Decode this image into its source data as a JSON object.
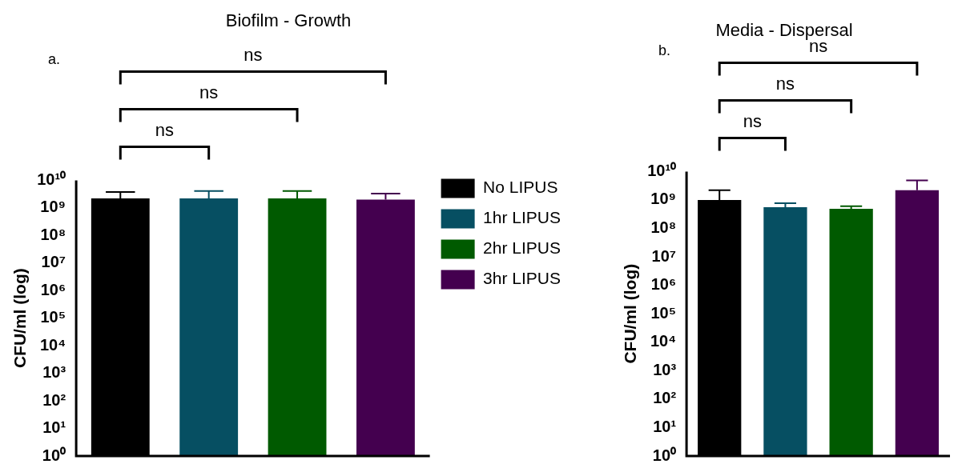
{
  "chart_data": [
    {
      "type": "bar",
      "title": "Biofilm - Growth",
      "ylabel": "CFU/ml (log)",
      "categories": [
        null,
        null,
        null,
        null
      ],
      "log": true,
      "legend": "right",
      "tick_labels": "y",
      "ylim": [
        1,
        10000000000
      ],
      "yticks": [
        {
          "value": 1,
          "label": "10⁰"
        },
        {
          "value": 10,
          "label": "10¹"
        },
        {
          "value": 100,
          "label": "10²"
        },
        {
          "value": 1000,
          "label": "10³"
        },
        {
          "value": 10000,
          "label": "10⁴"
        },
        {
          "value": 100000,
          "label": "10⁵"
        },
        {
          "value": 1000000,
          "label": "10⁶"
        },
        {
          "value": 10000000,
          "label": "10⁷"
        },
        {
          "value": 100000000,
          "label": "10⁸"
        },
        {
          "value": 1000000000,
          "label": "10⁹"
        },
        {
          "value": 10000000000,
          "label": "10¹⁰"
        }
      ],
      "series": [
        {
          "name": "No LIPUS",
          "color": "#000000",
          "values": [
            2200000000,
            null,
            null,
            null
          ],
          "errors": [
            [
              2200000000,
              3800000000
            ],
            null,
            null,
            null
          ]
        },
        {
          "name": "1hr LIPUS",
          "color": "#064f62",
          "values": [
            null,
            2200000000,
            null,
            null
          ],
          "errors": [
            null,
            [
              2200000000,
              4100000000
            ],
            null,
            null
          ]
        },
        {
          "name": "2hr LIPUS",
          "color": "#005a00",
          "values": [
            null,
            null,
            2200000000,
            null
          ],
          "errors": [
            null,
            null,
            [
              2200000000,
              4100000000
            ],
            null
          ]
        },
        {
          "name": "3hr LIPUS",
          "color": "#44004f",
          "values": [
            null,
            null,
            null,
            2000000000
          ],
          "errors": [
            null,
            null,
            null,
            [
              2000000000,
              3300000000
            ]
          ]
        }
      ],
      "annotations": [
        "a.",
        "ns",
        "ns",
        "ns"
      ]
    },
    {
      "type": "bar",
      "title": "Media - Dispersal",
      "ylabel": "CFU/ml (log)",
      "categories": [
        null,
        null,
        null,
        null
      ],
      "log": true,
      "tick_labels": "y",
      "ylim": [
        1,
        10000000000
      ],
      "yticks": [
        {
          "value": 1,
          "label": "10⁰"
        },
        {
          "value": 10,
          "label": "10¹"
        },
        {
          "value": 100,
          "label": "10²"
        },
        {
          "value": 1000,
          "label": "10³"
        },
        {
          "value": 10000,
          "label": "10⁴"
        },
        {
          "value": 100000,
          "label": "10⁵"
        },
        {
          "value": 1000000,
          "label": "10⁶"
        },
        {
          "value": 10000000,
          "label": "10⁷"
        },
        {
          "value": 100000000,
          "label": "10⁸"
        },
        {
          "value": 1000000000,
          "label": "10⁹"
        },
        {
          "value": 10000000000,
          "label": "10¹⁰"
        }
      ],
      "series": [
        {
          "color": "#000000",
          "values": [
            1000000000,
            null,
            null,
            null
          ],
          "errors": [
            [
              1000000000,
              2200000000
            ],
            null,
            null,
            null
          ]
        },
        {
          "color": "#064f62",
          "values": [
            null,
            560000000,
            null,
            null
          ],
          "errors": [
            null,
            [
              560000000,
              770000000
            ],
            null,
            null
          ]
        },
        {
          "color": "#005a00",
          "values": [
            null,
            null,
            490000000,
            null
          ],
          "errors": [
            null,
            null,
            [
              490000000,
              600000000
            ],
            null
          ]
        },
        {
          "color": "#44004f",
          "values": [
            null,
            null,
            null,
            2200000000
          ],
          "errors": [
            null,
            null,
            null,
            [
              2200000000,
              4900000000
            ]
          ]
        }
      ],
      "annotations": [
        "b.",
        "ns",
        "ns",
        "ns"
      ]
    }
  ]
}
